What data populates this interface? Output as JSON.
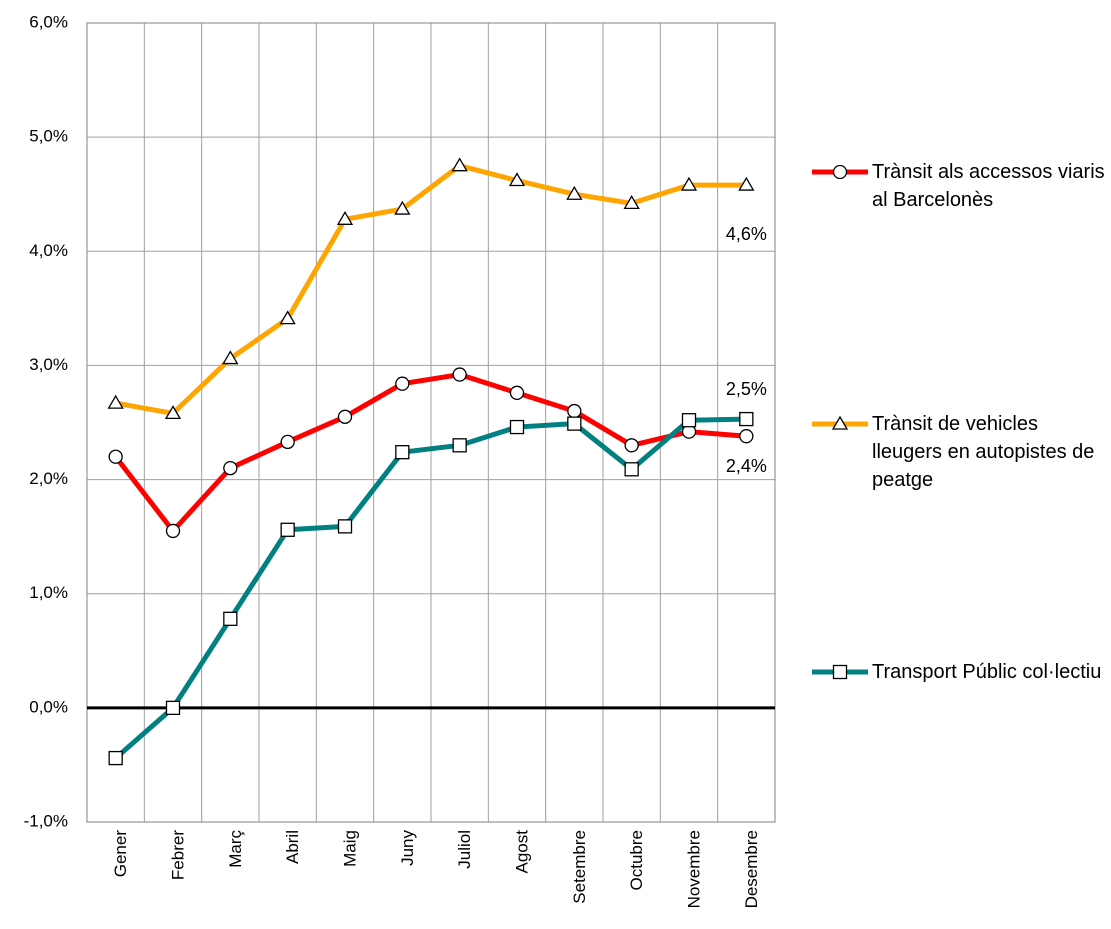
{
  "chart_data": {
    "type": "line",
    "categories": [
      "Gener",
      "Febrer",
      "Març",
      "Abril",
      "Maig",
      "Juny",
      "Juliol",
      "Agost",
      "Setembre",
      "Octubre",
      "Novembre",
      "Desembre"
    ],
    "series": [
      {
        "name": "Trànsit als accessos viaris al Barcelonès",
        "color": "#ff0000",
        "marker": "circle",
        "values": [
          2.2,
          1.55,
          2.1,
          2.33,
          2.55,
          2.84,
          2.92,
          2.76,
          2.6,
          2.3,
          2.42,
          2.38
        ],
        "value_labels": [
          null,
          null,
          null,
          null,
          null,
          null,
          null,
          null,
          null,
          null,
          null,
          "2,4%"
        ]
      },
      {
        "name": "Trànsit de vehicles lleugers en autopistes de peatge",
        "color": "#ffa500",
        "marker": "triangle",
        "values": [
          2.67,
          2.58,
          3.06,
          3.41,
          4.28,
          4.37,
          4.75,
          4.62,
          4.5,
          4.42,
          4.58,
          4.58
        ],
        "value_labels": [
          null,
          null,
          null,
          null,
          null,
          null,
          null,
          null,
          null,
          null,
          null,
          "4,6%"
        ]
      },
      {
        "name": "Transport Públic col·lectiu",
        "color": "#008080",
        "marker": "square",
        "values": [
          -0.44,
          0,
          0.78,
          1.56,
          1.59,
          2.24,
          2.3,
          2.46,
          2.49,
          2.09,
          2.52,
          2.53
        ],
        "value_labels": [
          null,
          null,
          null,
          null,
          null,
          null,
          null,
          null,
          null,
          null,
          null,
          "2,5%"
        ]
      }
    ],
    "ylim": [
      -1,
      6
    ],
    "yticks": [
      {
        "value": -1,
        "label": "-1,0%"
      },
      {
        "value": 0,
        "label": "0,0%"
      },
      {
        "value": 1,
        "label": "1,0%"
      },
      {
        "value": 2,
        "label": "2,0%"
      },
      {
        "value": 3,
        "label": "3,0%"
      },
      {
        "value": 4,
        "label": "4,0%"
      },
      {
        "value": 5,
        "label": "5,0%"
      },
      {
        "value": 6,
        "label": "6,0%"
      }
    ],
    "grid": true
  }
}
